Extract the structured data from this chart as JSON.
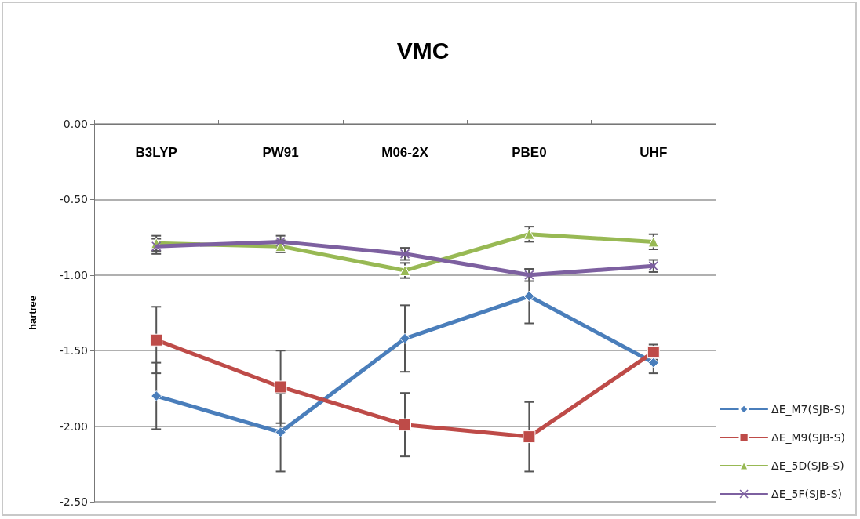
{
  "chart_data": {
    "type": "line",
    "title": "VMC",
    "ylabel": "hartree",
    "categories": [
      "B3LYP",
      "PW91",
      "M06-2X",
      "PBE0",
      "UHF"
    ],
    "ylim": [
      -2.5,
      0
    ],
    "yticks": [
      {
        "value": -2.5,
        "label": "-2.50"
      },
      {
        "value": -2.0,
        "label": "-2.00"
      },
      {
        "value": -1.5,
        "label": "-1.50"
      },
      {
        "value": -1.0,
        "label": "-1.00"
      },
      {
        "value": -0.5,
        "label": "-0.50"
      },
      {
        "value": 0,
        "label": "0.00"
      }
    ],
    "grid": "y",
    "legend": "bottom right",
    "series": [
      {
        "name": "ΔE_M7(SJB-S)",
        "color": "#4a7ebb",
        "marker": "diamond",
        "values": [
          -1.8,
          -2.04,
          -1.42,
          -1.14,
          -1.58
        ],
        "errors": [
          0.22,
          0.26,
          0.22,
          0.18,
          0.07
        ]
      },
      {
        "name": "ΔE_M9(SJB-S)",
        "color": "#be4b48",
        "marker": "square",
        "values": [
          -1.43,
          -1.74,
          -1.99,
          -2.07,
          -1.51
        ],
        "errors": [
          0.22,
          0.24,
          0.21,
          0.23,
          0.05
        ]
      },
      {
        "name": "ΔE_5D(SJB-S)",
        "color": "#98b954",
        "marker": "triangle",
        "values": [
          -0.79,
          -0.81,
          -0.97,
          -0.73,
          -0.78
        ],
        "errors": [
          0.05,
          0.04,
          0.05,
          0.05,
          0.05
        ]
      },
      {
        "name": "ΔE_5F(SJB-S)",
        "color": "#7d60a0",
        "marker": "cross",
        "values": [
          -0.81,
          -0.78,
          -0.86,
          -1.0,
          -0.94
        ],
        "errors": [
          0.05,
          0.04,
          0.04,
          0.04,
          0.04
        ]
      }
    ]
  }
}
